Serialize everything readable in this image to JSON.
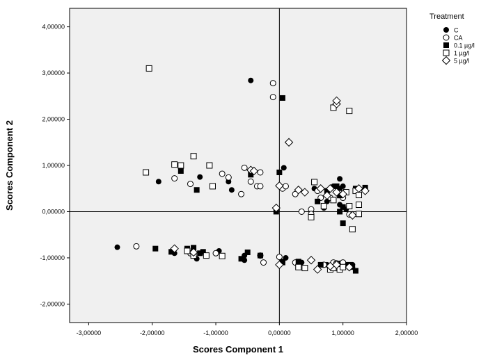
{
  "chart_data": {
    "type": "scatter",
    "xlabel": "Scores Component 1",
    "ylabel": "Scores Component  2",
    "xlim": [
      -3.3,
      2.0
    ],
    "ylim": [
      -2.4,
      4.4
    ],
    "x_ticks": [
      -3,
      -2,
      -1,
      0,
      1,
      2
    ],
    "y_ticks": [
      -2,
      -1,
      0,
      1,
      2,
      3,
      4
    ],
    "x_tick_labels": [
      "-3,00000",
      "-2,00000",
      "-1,00000",
      "0,00000",
      "1,00000",
      "2,00000"
    ],
    "y_tick_labels": [
      "-2,00000",
      "-1,00000",
      "0,00000",
      "1,00000",
      "2,00000",
      "3,00000",
      "4,00000"
    ],
    "reference_lines": {
      "x": 0,
      "y": 0
    },
    "plot_background": "#f0f0f0",
    "grid": false,
    "legend": {
      "title": "Treatment",
      "placement": "right"
    },
    "series": [
      {
        "name": "C",
        "marker": "filled-circle",
        "points": [
          [
            -0.45,
            2.84
          ],
          [
            0.07,
            0.95
          ],
          [
            -1.9,
            0.65
          ],
          [
            -1.25,
            0.75
          ],
          [
            -0.8,
            0.65
          ],
          [
            -0.75,
            0.47
          ],
          [
            0.55,
            0.5
          ],
          [
            0.65,
            0.5
          ],
          [
            0.85,
            0.55
          ],
          [
            0.95,
            0.71
          ],
          [
            1.0,
            0.55
          ],
          [
            0.7,
            0.08
          ],
          [
            0.95,
            0.15
          ],
          [
            1.05,
            0.05
          ],
          [
            0.95,
            0.5
          ],
          [
            0.75,
            0.22
          ],
          [
            -2.55,
            -0.77
          ],
          [
            -1.65,
            -0.9
          ],
          [
            -1.3,
            -1.02
          ],
          [
            -0.95,
            -0.85
          ],
          [
            -0.55,
            -0.95
          ],
          [
            -0.55,
            -1.05
          ],
          [
            0.05,
            -1.08
          ],
          [
            0.1,
            -1.0
          ],
          [
            0.35,
            -1.1
          ],
          [
            0.75,
            -1.15
          ],
          [
            0.95,
            -1.12
          ],
          [
            1.05,
            -1.15
          ],
          [
            1.15,
            -1.2
          ],
          [
            1.15,
            -1.15
          ]
        ]
      },
      {
        "name": "CA",
        "marker": "open-circle",
        "points": [
          [
            -0.1,
            2.78
          ],
          [
            -0.1,
            2.48
          ],
          [
            -1.65,
            0.72
          ],
          [
            -1.4,
            0.6
          ],
          [
            -0.9,
            0.82
          ],
          [
            -0.8,
            0.74
          ],
          [
            -0.55,
            0.95
          ],
          [
            -0.45,
            0.65
          ],
          [
            -0.35,
            0.55
          ],
          [
            -0.3,
            0.55
          ],
          [
            -0.3,
            0.85
          ],
          [
            0.05,
            0.5
          ],
          [
            0.1,
            0.55
          ],
          [
            0.25,
            0.38
          ],
          [
            0.35,
            0.0
          ],
          [
            0.5,
            0.05
          ],
          [
            0.65,
            0.3
          ],
          [
            0.8,
            0.3
          ],
          [
            0.95,
            0.4
          ],
          [
            1.0,
            0.3
          ],
          [
            0.6,
            0.45
          ],
          [
            0.5,
            -0.05
          ],
          [
            -0.6,
            0.38
          ],
          [
            -2.25,
            -0.75
          ],
          [
            -1.4,
            -0.9
          ],
          [
            -1.0,
            -0.9
          ],
          [
            -0.3,
            -0.95
          ],
          [
            -0.25,
            -1.1
          ],
          [
            0.0,
            -0.98
          ],
          [
            0.25,
            -1.1
          ],
          [
            0.85,
            -1.1
          ],
          [
            0.9,
            -1.12
          ],
          [
            1.0,
            -1.1
          ],
          [
            0.7,
            -1.15
          ],
          [
            1.1,
            -0.06
          ]
        ]
      },
      {
        "name": "0.1 µg/l",
        "marker": "filled-square",
        "points": [
          [
            0.05,
            2.46
          ],
          [
            -1.55,
            0.88
          ],
          [
            -1.3,
            0.47
          ],
          [
            -0.45,
            0.8
          ],
          [
            0.0,
            0.85
          ],
          [
            -0.05,
            0.0
          ],
          [
            0.6,
            0.22
          ],
          [
            0.75,
            0.45
          ],
          [
            0.9,
            0.55
          ],
          [
            0.95,
            0.35
          ],
          [
            0.95,
            0.0
          ],
          [
            1.0,
            -0.25
          ],
          [
            1.2,
            0.5
          ],
          [
            1.35,
            0.52
          ],
          [
            1.0,
            0.1
          ],
          [
            -1.95,
            -0.8
          ],
          [
            -1.7,
            -0.87
          ],
          [
            -1.45,
            -0.8
          ],
          [
            -1.35,
            -0.78
          ],
          [
            -1.25,
            -0.9
          ],
          [
            -1.2,
            -0.87
          ],
          [
            -0.5,
            -0.88
          ],
          [
            -0.3,
            -0.95
          ],
          [
            0.05,
            -1.1
          ],
          [
            0.3,
            -1.08
          ],
          [
            0.65,
            -1.15
          ],
          [
            0.8,
            -1.2
          ],
          [
            1.1,
            -1.15
          ],
          [
            1.2,
            -1.28
          ],
          [
            -0.6,
            -1.02
          ]
        ]
      },
      {
        "name": "1  µg/l",
        "marker": "open-square",
        "points": [
          [
            -2.05,
            3.1
          ],
          [
            0.85,
            2.25
          ],
          [
            1.1,
            2.18
          ],
          [
            -2.1,
            0.85
          ],
          [
            -1.65,
            1.02
          ],
          [
            -1.55,
            1.0
          ],
          [
            -1.35,
            1.2
          ],
          [
            -1.1,
            1.0
          ],
          [
            -1.05,
            0.55
          ],
          [
            0.55,
            0.64
          ],
          [
            0.7,
            0.12
          ],
          [
            0.5,
            -0.12
          ],
          [
            0.85,
            0.25
          ],
          [
            1.1,
            0.12
          ],
          [
            1.2,
            0.45
          ],
          [
            1.25,
            0.36
          ],
          [
            1.25,
            0.15
          ],
          [
            1.25,
            -0.05
          ],
          [
            1.15,
            -0.38
          ],
          [
            1.05,
            0.42
          ],
          [
            -1.45,
            -0.85
          ],
          [
            -1.35,
            -0.95
          ],
          [
            -1.15,
            -0.95
          ],
          [
            -0.9,
            -0.96
          ],
          [
            0.3,
            -1.2
          ],
          [
            0.4,
            -1.22
          ],
          [
            0.8,
            -1.25
          ],
          [
            0.9,
            -1.15
          ],
          [
            0.95,
            -1.25
          ],
          [
            1.0,
            -1.2
          ],
          [
            0.85,
            -1.22
          ]
        ]
      },
      {
        "name": "5 µg/l",
        "marker": "open-diamond",
        "points": [
          [
            0.9,
            2.33
          ],
          [
            0.9,
            2.4
          ],
          [
            0.15,
            1.5
          ],
          [
            -0.45,
            0.9
          ],
          [
            -0.4,
            0.88
          ],
          [
            0.0,
            0.56
          ],
          [
            0.3,
            0.47
          ],
          [
            0.4,
            0.42
          ],
          [
            0.65,
            0.5
          ],
          [
            0.75,
            0.35
          ],
          [
            0.8,
            0.5
          ],
          [
            0.9,
            0.42
          ],
          [
            1.0,
            0.38
          ],
          [
            1.25,
            0.5
          ],
          [
            1.35,
            0.45
          ],
          [
            1.15,
            -0.08
          ],
          [
            -0.05,
            0.08
          ],
          [
            -1.65,
            -0.8
          ],
          [
            -1.35,
            -0.88
          ],
          [
            0.0,
            -1.15
          ],
          [
            0.5,
            -1.05
          ],
          [
            0.6,
            -1.25
          ],
          [
            1.1,
            -1.2
          ],
          [
            0.8,
            -1.18
          ],
          [
            0.9,
            -1.15
          ]
        ]
      }
    ]
  }
}
